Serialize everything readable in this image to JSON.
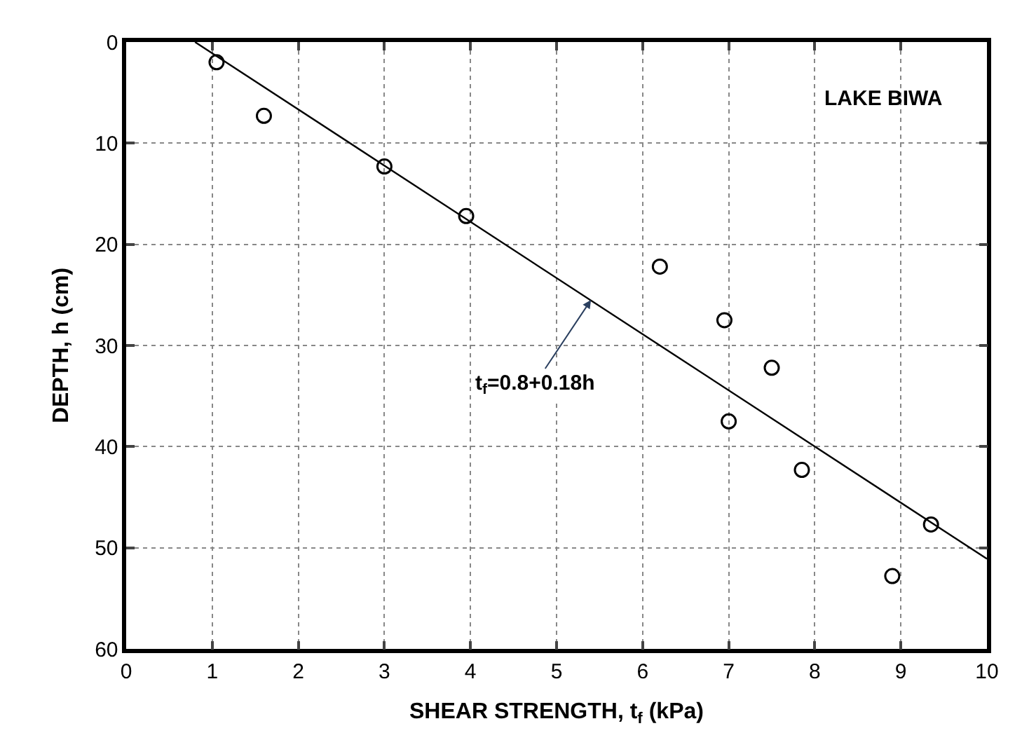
{
  "chart_data": {
    "type": "scatter",
    "xlabel": "SHEAR STRENGTH, t$_{f}$ (kPa)",
    "ylabel": "DEPTH, h (cm)",
    "x": [
      1.05,
      1.6,
      3.0,
      3.95,
      6.2,
      6.95,
      7.5,
      7.0,
      7.85,
      9.35,
      8.9
    ],
    "series": [
      {
        "color": "#000000",
        "marker": "circle",
        "values": [
          2,
          7.3,
          12.3,
          17.2,
          22.2,
          27.5,
          32.2,
          37.5,
          42.3,
          47.7,
          52.8
        ]
      },
      {
        "type": "line",
        "color": "#000000",
        "marker": "none",
        "x": [
          0.8,
          10
        ],
        "values": [
          0,
          51.1
        ]
      }
    ],
    "xlim": [
      0,
      10
    ],
    "xticks": [
      0,
      1,
      2,
      3,
      4,
      5,
      6,
      7,
      8,
      9,
      10
    ],
    "ylim": [
      60,
      0
    ],
    "yticks": [
      0,
      10,
      20,
      30,
      40,
      50,
      60
    ],
    "grid": true,
    "legend": false,
    "annotations": [
      "LAKE BIWA",
      {
        "text": "t$_{f}$=0.8+0.18h",
        "x": 5.4,
        "y": 25.5
      }
    ]
  }
}
